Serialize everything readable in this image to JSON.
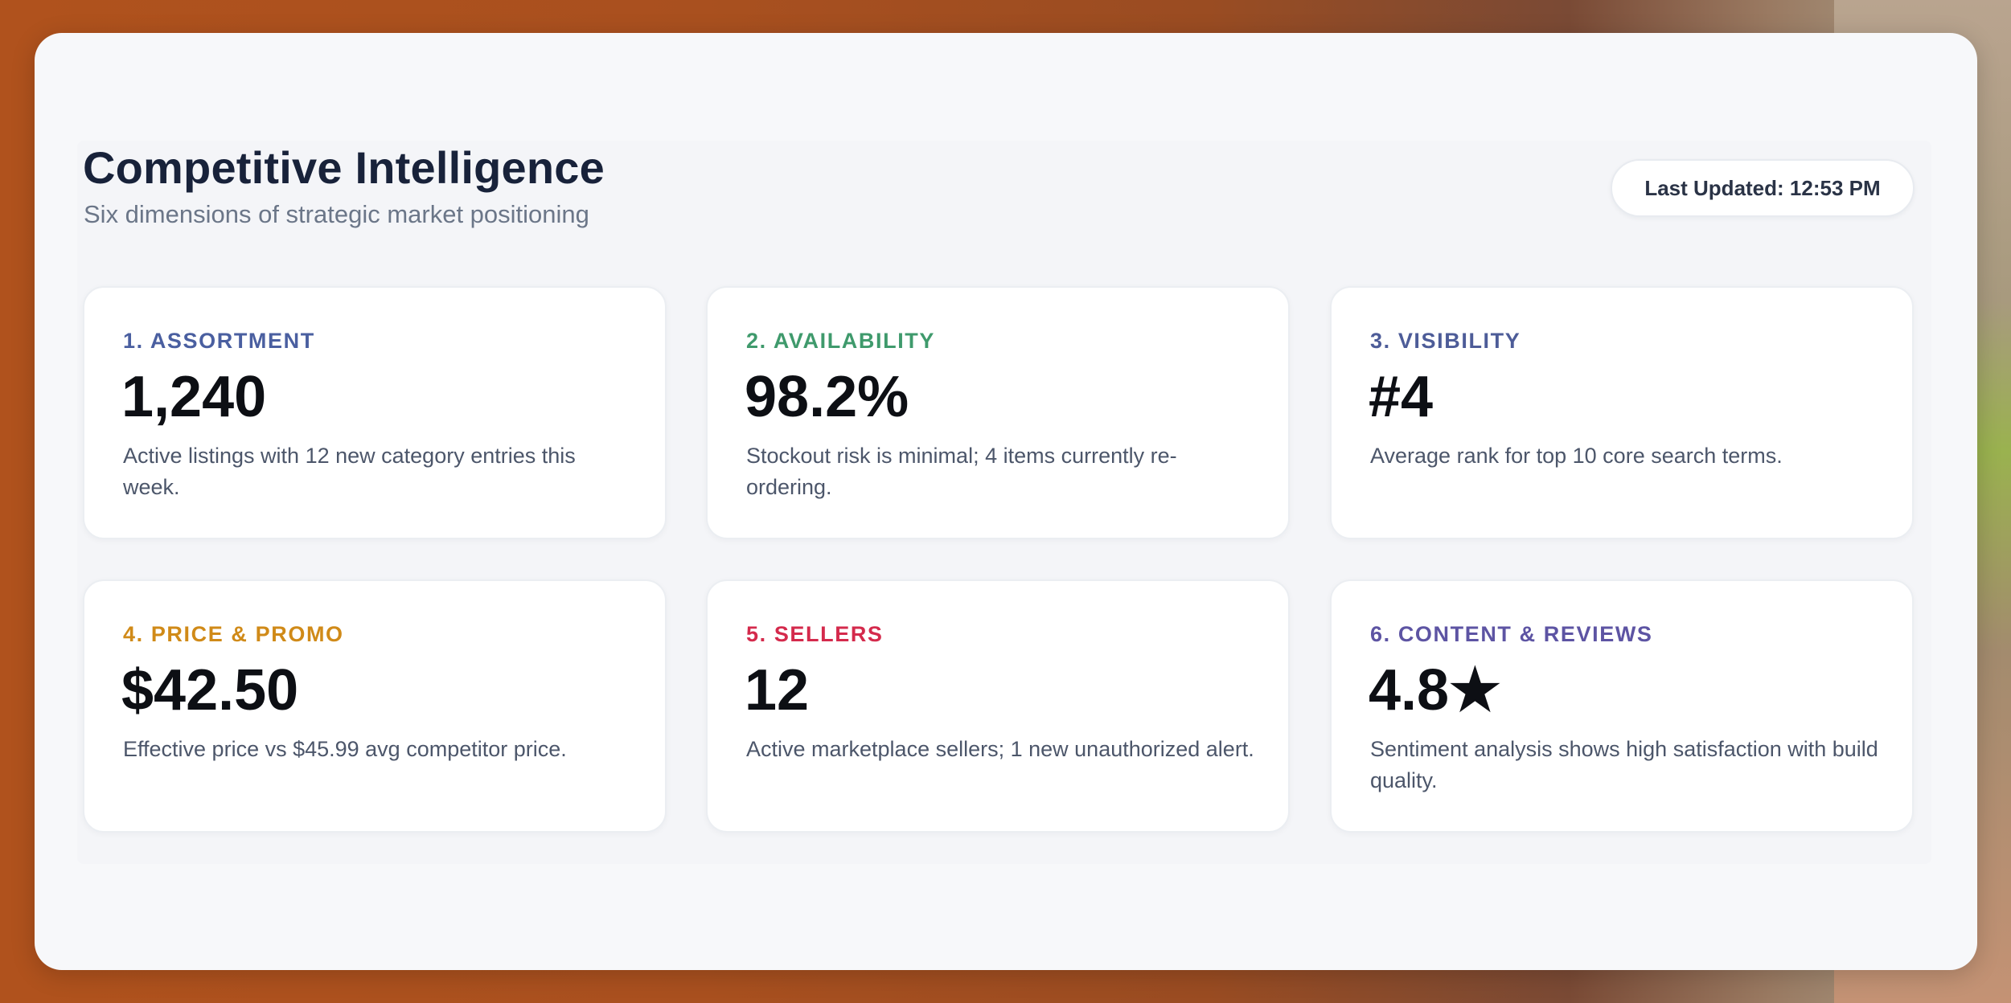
{
  "header": {
    "title": "Competitive Intelligence",
    "subtitle": "Six dimensions of strategic market positioning",
    "last_updated": "Last Updated: 12:53 PM"
  },
  "cards": [
    {
      "label": "1. ASSORTMENT",
      "value": "1,240",
      "description": "Active listings with 12 new category entries this week.",
      "accent": "#4a5fa0"
    },
    {
      "label": "2. AVAILABILITY",
      "value": "98.2%",
      "description": "Stockout risk is minimal; 4 items currently re-ordering.",
      "accent": "#3f9a6c"
    },
    {
      "label": "3. VISIBILITY",
      "value": "#4",
      "description": "Average rank for top 10 core search terms.",
      "accent": "#4d5c98"
    },
    {
      "label": "4. PRICE & PROMO",
      "value": "$42.50",
      "description": "Effective price vs $45.99 avg competitor price.",
      "accent": "#d08a18"
    },
    {
      "label": "5. SELLERS",
      "value": "12",
      "description": "Active marketplace sellers; 1 new unauthorized alert.",
      "accent": "#d42a4c"
    },
    {
      "label": "6. CONTENT & REVIEWS",
      "value": "4.8★",
      "description": "Sentiment analysis shows high satisfaction with build quality.",
      "accent": "#5d54a3"
    }
  ]
}
